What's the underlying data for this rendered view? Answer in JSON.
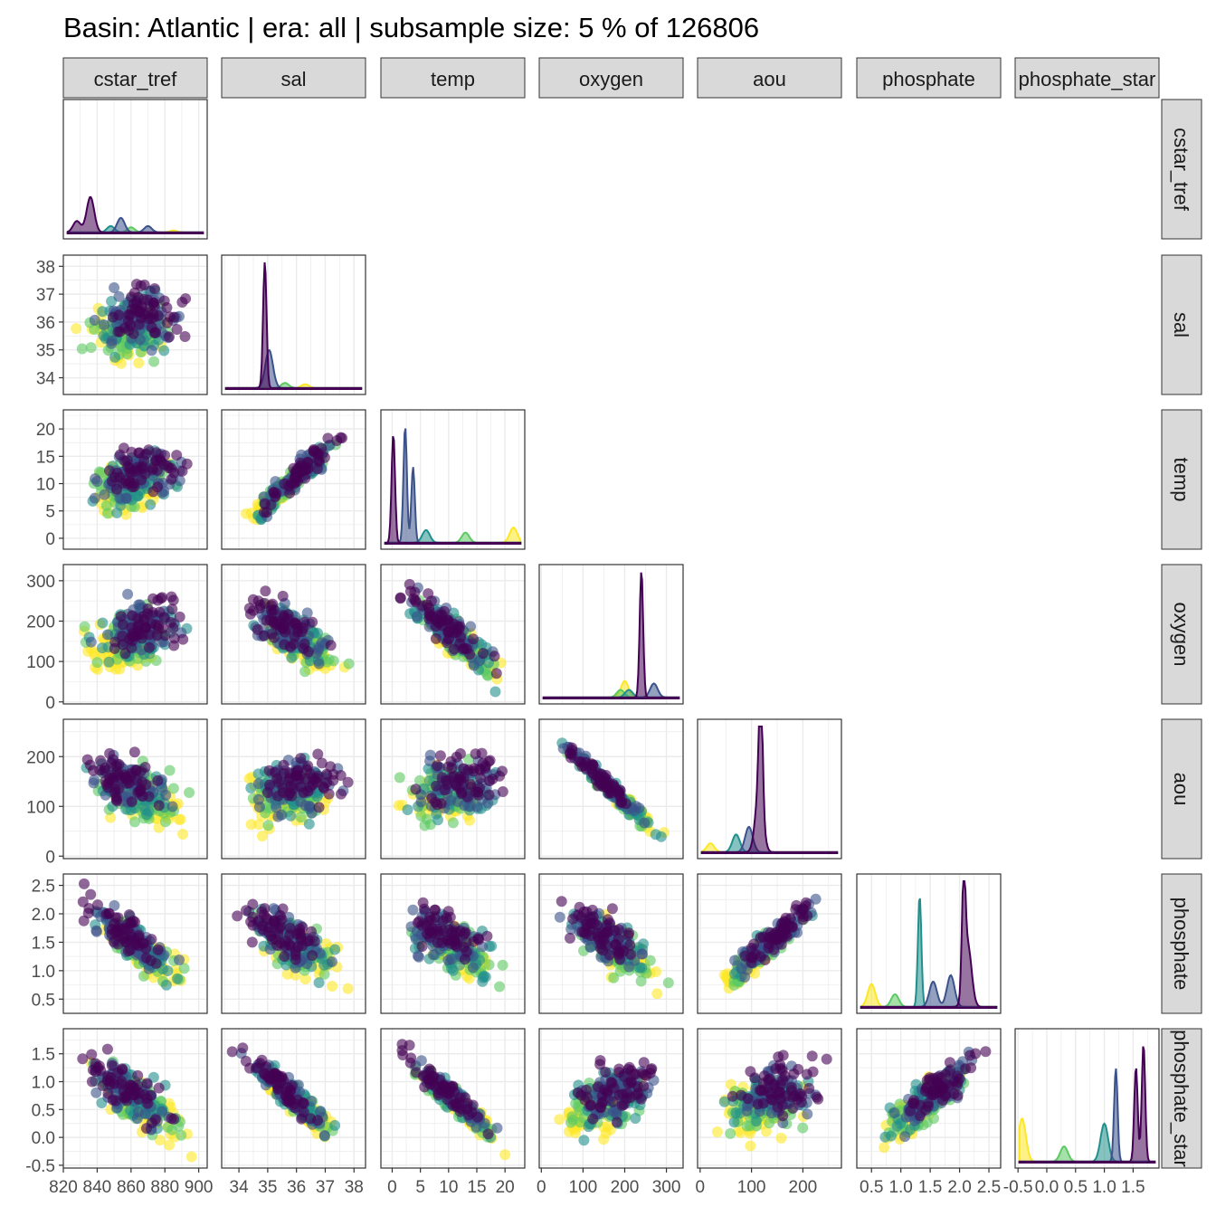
{
  "chart_data": {
    "type": "scatter",
    "title": "Basin: Atlantic | era: all | subsample size: 5 % of 126806",
    "layout": "lower-triangular pair plot (scatter below diagonal, density on diagonal)",
    "grid": true,
    "legend": "none",
    "palette": [
      "#440154",
      "#3b528b",
      "#21908c",
      "#5dc963",
      "#fde725"
    ],
    "variables": [
      {
        "name": "cstar_tref",
        "range": [
          820,
          905
        ],
        "ticks": [
          820,
          840,
          860,
          880,
          900
        ],
        "tick_labels": [
          "820",
          "840",
          "860",
          "880",
          "900"
        ]
      },
      {
        "name": "sal",
        "range": [
          33.4,
          38.4
        ],
        "ticks": [
          34,
          35,
          36,
          37,
          38
        ],
        "tick_labels": [
          "34",
          "35",
          "36",
          "37",
          "38"
        ]
      },
      {
        "name": "temp",
        "range": [
          -2,
          23.5
        ],
        "ticks": [
          0,
          5,
          10,
          15,
          20
        ],
        "tick_labels": [
          "0",
          "5",
          "10",
          "15",
          "20"
        ]
      },
      {
        "name": "oxygen",
        "range": [
          -5,
          340
        ],
        "ticks": [
          0,
          100,
          200,
          300
        ],
        "tick_labels": [
          "0",
          "100",
          "200",
          "300"
        ]
      },
      {
        "name": "aou",
        "range": [
          -5,
          275
        ],
        "ticks": [
          0,
          100,
          200
        ],
        "tick_labels": [
          "0",
          "100",
          "200"
        ]
      },
      {
        "name": "phosphate",
        "range": [
          0.25,
          2.7
        ],
        "ticks": [
          0.5,
          1.0,
          1.5,
          2.0,
          2.5
        ],
        "tick_labels": [
          "0.5",
          "1.0",
          "1.5",
          "2.0",
          "2.5"
        ]
      },
      {
        "name": "phosphate_star",
        "range": [
          -0.55,
          1.95
        ],
        "ticks": [
          -0.5,
          0.0,
          0.5,
          1.0,
          1.5
        ],
        "tick_labels": [
          "-0.5",
          "0.0",
          "0.5",
          "1.0",
          "1.5"
        ]
      }
    ],
    "diagonal_density_peaks": {
      "cstar_tref": [
        {
          "series": 0,
          "center": 836,
          "height": 0.28
        },
        {
          "series": 0,
          "center": 828,
          "height": 0.09
        },
        {
          "series": 1,
          "center": 854,
          "height": 0.115
        },
        {
          "series": 1,
          "center": 870,
          "height": 0.05
        },
        {
          "series": 2,
          "center": 848,
          "height": 0.05
        },
        {
          "series": 3,
          "center": 860,
          "height": 0.04
        },
        {
          "series": 4,
          "center": 885,
          "height": 0.015
        }
      ],
      "sal": [
        {
          "series": 0,
          "center": 34.9,
          "height": 1.0
        },
        {
          "series": 1,
          "center": 35.05,
          "height": 0.3
        },
        {
          "series": 3,
          "center": 35.6,
          "height": 0.04
        },
        {
          "series": 4,
          "center": 36.3,
          "height": 0.03
        }
      ],
      "temp": [
        {
          "series": 0,
          "center": 0.2,
          "height": 0.86
        },
        {
          "series": 1,
          "center": 2.3,
          "height": 0.92
        },
        {
          "series": 1,
          "center": 3.7,
          "height": 0.6
        },
        {
          "series": 2,
          "center": 6,
          "height": 0.1
        },
        {
          "series": 3,
          "center": 13,
          "height": 0.08
        },
        {
          "series": 4,
          "center": 21.5,
          "height": 0.12
        }
      ],
      "oxygen": [
        {
          "series": 0,
          "center": 240,
          "height": 1.0
        },
        {
          "series": 1,
          "center": 270,
          "height": 0.11
        },
        {
          "series": 2,
          "center": 210,
          "height": 0.06
        },
        {
          "series": 3,
          "center": 190,
          "height": 0.06
        },
        {
          "series": 4,
          "center": 200,
          "height": 0.13
        }
      ],
      "aou": [
        {
          "series": 0,
          "center": 118,
          "height": 1.0
        },
        {
          "series": 0,
          "center": 115,
          "height": 0.5
        },
        {
          "series": 1,
          "center": 95,
          "height": 0.2
        },
        {
          "series": 2,
          "center": 70,
          "height": 0.14
        },
        {
          "series": 4,
          "center": 20,
          "height": 0.07
        }
      ],
      "phosphate": [
        {
          "series": 0,
          "center": 2.07,
          "height": 0.87
        },
        {
          "series": 0,
          "center": 2.14,
          "height": 0.49
        },
        {
          "series": 1,
          "center": 1.85,
          "height": 0.25
        },
        {
          "series": 1,
          "center": 1.55,
          "height": 0.2
        },
        {
          "series": 2,
          "center": 1.32,
          "height": 0.88
        },
        {
          "series": 3,
          "center": 0.9,
          "height": 0.1
        },
        {
          "series": 4,
          "center": 0.5,
          "height": 0.18
        }
      ],
      "phosphate_star": [
        {
          "series": 0,
          "center": 1.68,
          "height": 0.93
        },
        {
          "series": 0,
          "center": 1.55,
          "height": 0.75
        },
        {
          "series": 1,
          "center": 1.2,
          "height": 0.74
        },
        {
          "series": 2,
          "center": 1.0,
          "height": 0.3
        },
        {
          "series": 3,
          "center": 0.3,
          "height": 0.12
        },
        {
          "series": 4,
          "center": -0.43,
          "height": 0.34
        }
      ]
    }
  }
}
